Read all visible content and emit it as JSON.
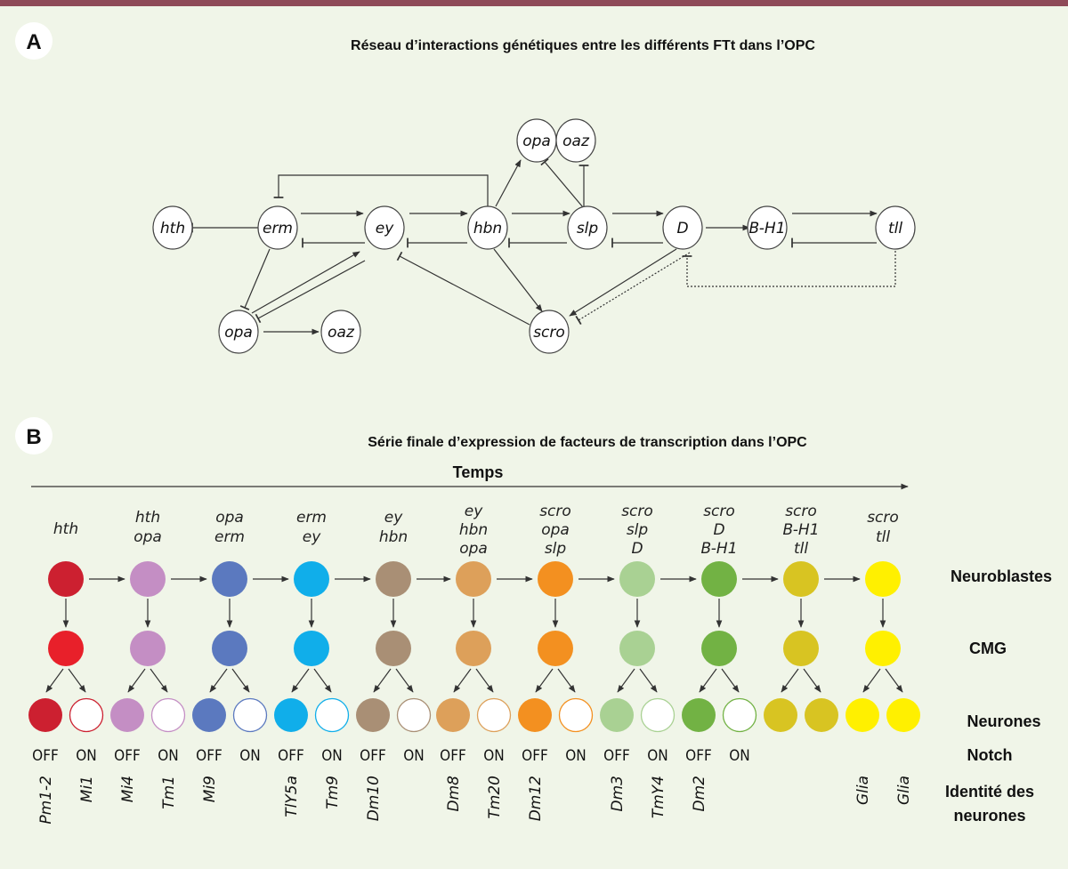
{
  "panel_a": {
    "badge": "A",
    "title": "Réseau d’interactions génétiques entre les différents FTt dans l’OPC",
    "nodes": [
      "hth",
      "erm",
      "ey",
      "hbn",
      "slp",
      "D",
      "B-H1",
      "tll",
      "opa",
      "oaz",
      "opa",
      "oaz",
      "scro"
    ],
    "edge_types": {
      "activation": "arrow",
      "repression": "bar",
      "indirect": "dashed bar"
    }
  },
  "panel_b": {
    "badge": "B",
    "title": "Série finale d’expression de facteurs de transcription dans l’OPC",
    "time_label": "Temps",
    "row_labels": {
      "neuroblasts": "Neuroblastes",
      "cmg": "CMG",
      "neurons": "Neurones",
      "notch": "Notch",
      "identity_1": "Identité des",
      "identity_2": "neurones"
    },
    "columns": [
      {
        "genes": [
          "hth"
        ],
        "color": "#cc2030",
        "color_cmg": "#e8202a",
        "notch": [
          "OFF",
          "ON"
        ],
        "identity": [
          "Pm1-2",
          "Mi1"
        ],
        "both_filled": false
      },
      {
        "genes": [
          "hth",
          "opa"
        ],
        "color": "#c48ec4",
        "color_cmg": "#c48ec4",
        "notch": [
          "OFF",
          "ON"
        ],
        "identity": [
          "Mi4",
          "Tm1"
        ],
        "both_filled": false
      },
      {
        "genes": [
          "opa",
          "erm"
        ],
        "color": "#5b79bf",
        "color_cmg": "#5b79bf",
        "notch": [
          "OFF",
          "ON"
        ],
        "identity": [
          "Mi9",
          ""
        ],
        "both_filled": false
      },
      {
        "genes": [
          "erm",
          "ey"
        ],
        "color": "#10aeea",
        "color_cmg": "#10aeea",
        "notch": [
          "OFF",
          "ON"
        ],
        "identity": [
          "TlY5a",
          "Tm9"
        ],
        "both_filled": false
      },
      {
        "genes": [
          "ey",
          "hbn"
        ],
        "color": "#a98f75",
        "color_cmg": "#a98f75",
        "notch": [
          "OFF",
          "ON"
        ],
        "identity": [
          "Dm10",
          ""
        ],
        "both_filled": false
      },
      {
        "genes": [
          "ey",
          "hbn",
          "opa"
        ],
        "color": "#dda05a",
        "color_cmg": "#dda05a",
        "notch": [
          "OFF",
          "ON"
        ],
        "identity": [
          "Dm8",
          "Tm20"
        ],
        "both_filled": false
      },
      {
        "genes": [
          "scro",
          "opa",
          "slp"
        ],
        "color": "#f39020",
        "color_cmg": "#f39020",
        "notch": [
          "OFF",
          "ON"
        ],
        "identity": [
          "Dm12",
          ""
        ],
        "both_filled": false
      },
      {
        "genes": [
          "scro",
          "slp",
          "D"
        ],
        "color": "#a9d193",
        "color_cmg": "#a9d193",
        "notch": [
          "OFF",
          "ON"
        ],
        "identity": [
          "Dm3",
          "TmY4"
        ],
        "both_filled": false
      },
      {
        "genes": [
          "scro",
          "D",
          "B-H1"
        ],
        "color": "#72b244",
        "color_cmg": "#72b244",
        "notch": [
          "OFF",
          "ON"
        ],
        "identity": [
          "Dm2",
          ""
        ],
        "both_filled": false
      },
      {
        "genes": [
          "scro",
          "B-H1",
          "tll"
        ],
        "color": "#d8c422",
        "color_cmg": "#d8c422",
        "notch": [
          "",
          ""
        ],
        "identity": [
          "",
          ""
        ],
        "both_filled": true
      },
      {
        "genes": [
          "scro",
          "tll"
        ],
        "color": "#fff000",
        "color_cmg": "#fff000",
        "notch": [
          "",
          ""
        ],
        "identity": [
          "Glia",
          "Glia"
        ],
        "both_filled": true
      }
    ]
  },
  "colors": {
    "background": "#f0f5e8",
    "top_bar": "#8e4a58",
    "line": "#333333"
  }
}
